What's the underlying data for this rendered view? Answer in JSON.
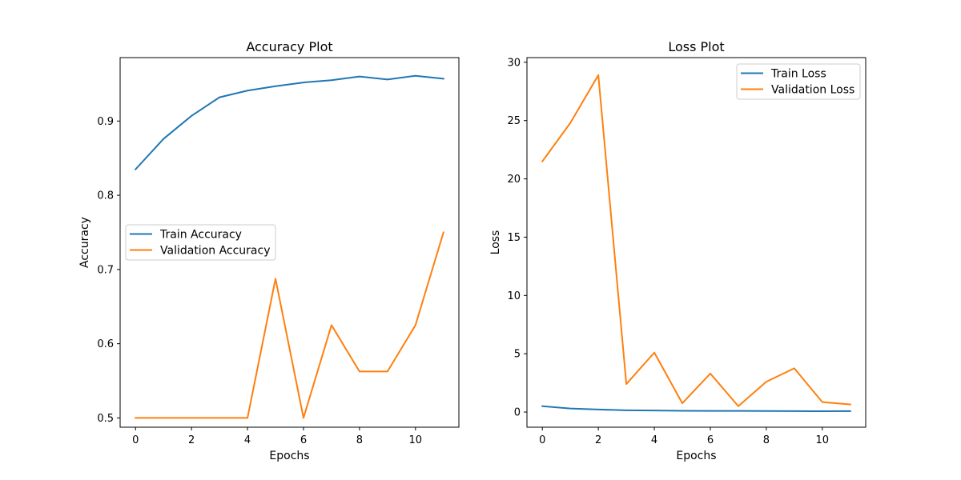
{
  "chart_data": [
    {
      "type": "line",
      "title": "Accuracy Plot",
      "xlabel": "Epochs",
      "ylabel": "Accuracy",
      "x": [
        0,
        1,
        2,
        3,
        4,
        5,
        6,
        7,
        8,
        9,
        10,
        11
      ],
      "xlim": [
        -0.55,
        11.55
      ],
      "ylim": [
        0.4875,
        0.9855
      ],
      "xticks": [
        0,
        2,
        4,
        6,
        8,
        10
      ],
      "yticks": [
        0.5,
        0.6,
        0.7,
        0.8,
        0.9
      ],
      "xtick_labels": [
        "0",
        "2",
        "4",
        "6",
        "8",
        "10"
      ],
      "ytick_labels": [
        "0.5",
        "0.6",
        "0.7",
        "0.8",
        "0.9"
      ],
      "grid": false,
      "legend_position": "center-left",
      "series": [
        {
          "name": "Train Accuracy",
          "color": "#1f77b4",
          "values": [
            0.835,
            0.876,
            0.907,
            0.932,
            0.941,
            0.947,
            0.952,
            0.955,
            0.96,
            0.956,
            0.961,
            0.957
          ]
        },
        {
          "name": "Validation Accuracy",
          "color": "#ff7f0e",
          "values": [
            0.5,
            0.5,
            0.5,
            0.5,
            0.5,
            0.6875,
            0.5,
            0.625,
            0.5625,
            0.5625,
            0.625,
            0.75
          ]
        }
      ]
    },
    {
      "type": "line",
      "title": "Loss Plot",
      "xlabel": "Epochs",
      "ylabel": "Loss",
      "x": [
        0,
        1,
        2,
        3,
        4,
        5,
        6,
        7,
        8,
        9,
        10,
        11
      ],
      "xlim": [
        -0.55,
        11.55
      ],
      "ylim": [
        -1.3,
        30.4
      ],
      "xticks": [
        0,
        2,
        4,
        6,
        8,
        10
      ],
      "yticks": [
        0,
        5,
        10,
        15,
        20,
        25,
        30
      ],
      "xtick_labels": [
        "0",
        "2",
        "4",
        "6",
        "8",
        "10"
      ],
      "ytick_labels": [
        "0",
        "5",
        "10",
        "15",
        "20",
        "25",
        "30"
      ],
      "grid": false,
      "legend_position": "upper-right",
      "series": [
        {
          "name": "Train Loss",
          "color": "#1f77b4",
          "values": [
            0.5,
            0.3,
            0.22,
            0.15,
            0.13,
            0.11,
            0.1,
            0.1,
            0.09,
            0.08,
            0.07,
            0.08
          ]
        },
        {
          "name": "Validation Loss",
          "color": "#ff7f0e",
          "values": [
            21.5,
            24.8,
            28.9,
            2.4,
            5.1,
            0.75,
            3.3,
            0.5,
            2.6,
            3.75,
            0.85,
            0.65
          ]
        }
      ]
    }
  ]
}
